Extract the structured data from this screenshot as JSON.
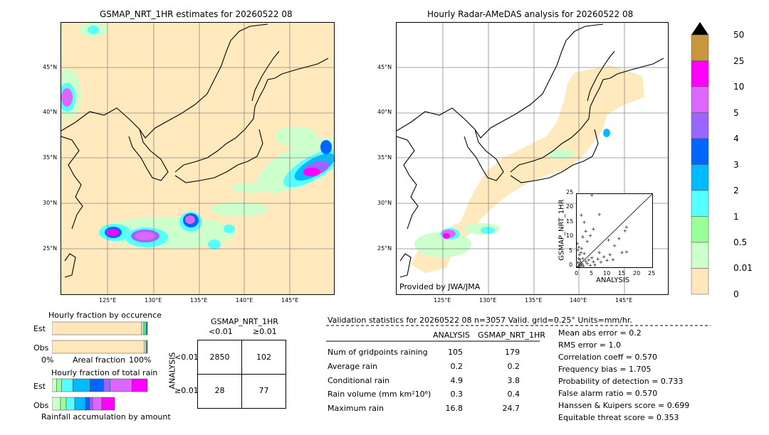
{
  "left_map": {
    "title": "GSMAP_NRT_1HR estimates for 20260522 08"
  },
  "right_map": {
    "title": "Hourly Radar-AMeDAS analysis for 20260522 08",
    "credit": "Provided by JWA/JMA"
  },
  "map_axes": {
    "lat_labels": [
      "45°N",
      "40°N",
      "35°N",
      "30°N",
      "25°N"
    ],
    "lon_labels": [
      "125°E",
      "130°E",
      "135°E",
      "140°E",
      "145°E"
    ]
  },
  "colorbar": {
    "labels": [
      "50",
      "25",
      "10",
      "5",
      "4",
      "3",
      "2",
      "1",
      "0.5",
      "0.01",
      "0"
    ],
    "colors": [
      "#c8963c",
      "#ff00ff",
      "#dd66ff",
      "#9966ff",
      "#0066ff",
      "#00bbff",
      "#55ffff",
      "#99ff99",
      "#ccffcc",
      "#ffe6bb"
    ],
    "extend_color": "#000000"
  },
  "scatter": {
    "xlabel": "ANALYSIS",
    "ylabel": "GSMAP_NRT_1HR",
    "ticks": [
      "0",
      "5",
      "10",
      "15",
      "20",
      "25"
    ]
  },
  "chart_data": {
    "type": "scatter",
    "xlabel": "ANALYSIS",
    "ylabel": "GSMAP_NRT_1HR",
    "xlim": [
      0,
      25
    ],
    "ylim": [
      0,
      25
    ],
    "points": [
      [
        0.5,
        0.3
      ],
      [
        0.8,
        1.2
      ],
      [
        1.0,
        0.5
      ],
      [
        1.2,
        2.0
      ],
      [
        1.5,
        0.8
      ],
      [
        0.3,
        1.8
      ],
      [
        0.6,
        3.2
      ],
      [
        0.9,
        4.5
      ],
      [
        1.1,
        2.8
      ],
      [
        1.4,
        5.2
      ],
      [
        0.4,
        6.1
      ],
      [
        0.7,
        7.0
      ],
      [
        1.8,
        1.3
      ],
      [
        2.0,
        3.1
      ],
      [
        2.2,
        0.6
      ],
      [
        2.5,
        4.8
      ],
      [
        1.6,
        6.5
      ],
      [
        0.2,
        8.2
      ],
      [
        3.0,
        2.2
      ],
      [
        3.5,
        1.4
      ],
      [
        4.0,
        2.7
      ],
      [
        4.5,
        0.9
      ],
      [
        5.0,
        3.4
      ],
      [
        5.5,
        2.1
      ],
      [
        6.0,
        1.0
      ],
      [
        7.0,
        3.0
      ],
      [
        7.5,
        5.2
      ],
      [
        8.0,
        2.0
      ],
      [
        9.0,
        3.8
      ],
      [
        10.0,
        2.5
      ],
      [
        11.0,
        4.5
      ],
      [
        12.0,
        2.8
      ],
      [
        15.0,
        5.2
      ],
      [
        16.5,
        5.5
      ],
      [
        16.0,
        12.6
      ],
      [
        16.5,
        13.8
      ],
      [
        14.0,
        10.0
      ],
      [
        12.5,
        7.5
      ],
      [
        10.5,
        9.5
      ],
      [
        5.5,
        13.2
      ],
      [
        4.5,
        11.0
      ],
      [
        3.5,
        9.0
      ],
      [
        2.5,
        15.5
      ],
      [
        1.5,
        18.0
      ],
      [
        7.5,
        18.2
      ],
      [
        5.0,
        24.8
      ],
      [
        3.0,
        12.5
      ],
      [
        2.0,
        10.5
      ]
    ]
  },
  "occurrence": {
    "title": "Hourly fraction by occurence",
    "row_est": "Est",
    "row_obs": "Obs",
    "xlabel": "Areal fraction",
    "x_min": "0%",
    "x_max": "100%",
    "est_fractions": [
      0.94,
      0.02,
      0.015,
      0.012,
      0.008,
      0.005
    ],
    "obs_fractions": [
      0.965,
      0.02,
      0.008,
      0.004,
      0.003
    ]
  },
  "total_rain": {
    "title": "Hourly fraction of total rain",
    "row_est": "Est",
    "row_obs": "Obs",
    "footer": "Rainfall accumulation by amount",
    "est_fractions": [
      0.05,
      0.05,
      0.12,
      0.18,
      0.14,
      0.07,
      0.23,
      0.16
    ],
    "obs_fractions": [
      0.12,
      0.08,
      0.12,
      0.15,
      0.06,
      0.04,
      0.13,
      0.18
    ]
  },
  "contingency": {
    "title": "GSMAP_NRT_1HR",
    "col_lt": "<0.01",
    "col_ge": "≥0.01",
    "row_title": "ANALYSIS",
    "row_lt": "<0.01",
    "row_ge": "≥0.01",
    "cells": [
      "2850",
      "102",
      "28",
      "77"
    ]
  },
  "validation": {
    "header": "Validation statistics for 20260522 08  n=3057 Valid. grid=0.25° Units=mm/hr.",
    "col_analysis": "ANALYSIS",
    "col_gsmap": "GSMAP_NRT_1HR",
    "rows": [
      {
        "label": "Num of gridpoints raining",
        "analysis": "105",
        "gsmap": "179"
      },
      {
        "label": "Average rain",
        "analysis": "0.2",
        "gsmap": "0.2"
      },
      {
        "label": "Conditional rain",
        "analysis": "4.9",
        "gsmap": "3.8"
      },
      {
        "label": "Rain volume (mm km²10⁶)",
        "analysis": "0.3",
        "gsmap": "0.4"
      },
      {
        "label": "Maximum rain",
        "analysis": "16.8",
        "gsmap": "24.7"
      }
    ],
    "scores": [
      "Mean abs error =    0.2",
      "RMS error =    1.0",
      "Correlation coeff =  0.570",
      "Frequency bias =  1.705",
      "Probability of detection =  0.733",
      "False alarm ratio =  0.570",
      "Hanssen & Kuipers score =  0.699",
      "Equitable threat score =  0.353"
    ]
  }
}
